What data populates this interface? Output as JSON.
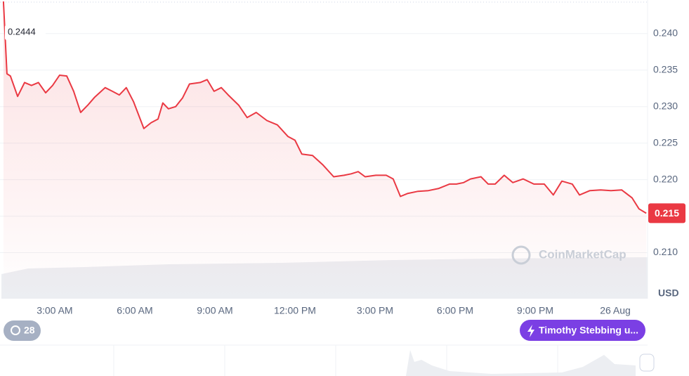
{
  "chart_data": {
    "type": "line",
    "x": [
      1.08,
      1.21,
      1.34,
      1.61,
      1.87,
      2.13,
      2.39,
      2.66,
      2.92,
      3.18,
      3.45,
      3.71,
      3.97,
      4.24,
      4.5,
      4.89,
      5.16,
      5.42,
      5.68,
      5.95,
      6.34,
      6.61,
      6.87,
      7.05,
      7.26,
      7.53,
      7.79,
      8.05,
      8.45,
      8.71,
      8.97,
      9.24,
      9.5,
      9.89,
      10.21,
      10.55,
      10.95,
      11.34,
      11.74,
      12.0,
      12.26,
      12.66,
      13.05,
      13.45,
      13.84,
      14.11,
      14.37,
      14.63,
      15.03,
      15.42,
      15.68,
      15.95,
      16.21,
      16.61,
      17.0,
      17.39,
      17.79,
      18.05,
      18.32,
      18.58,
      18.97,
      19.24,
      19.5,
      19.84,
      20.16,
      20.55,
      20.95,
      21.34,
      21.68,
      22.0,
      22.39,
      22.66,
      23.05,
      23.45,
      23.84,
      24.24,
      24.63,
      24.89,
      25.16
    ],
    "values": [
      0.2444,
      0.2345,
      0.2342,
      0.2314,
      0.2333,
      0.2329,
      0.2333,
      0.2319,
      0.2329,
      0.2343,
      0.2342,
      0.2321,
      0.2292,
      0.2302,
      0.2313,
      0.2326,
      0.2321,
      0.2316,
      0.2326,
      0.2307,
      0.227,
      0.2278,
      0.2283,
      0.2305,
      0.2297,
      0.23,
      0.2312,
      0.2331,
      0.2333,
      0.2337,
      0.2321,
      0.2326,
      0.2316,
      0.2302,
      0.2285,
      0.2292,
      0.2281,
      0.2275,
      0.2259,
      0.2254,
      0.2235,
      0.2233,
      0.222,
      0.2204,
      0.2206,
      0.2208,
      0.2211,
      0.2204,
      0.2206,
      0.2206,
      0.2201,
      0.2177,
      0.2181,
      0.2184,
      0.2185,
      0.2188,
      0.2194,
      0.2194,
      0.2196,
      0.2201,
      0.2204,
      0.2194,
      0.2194,
      0.2206,
      0.2196,
      0.2201,
      0.2194,
      0.2194,
      0.2179,
      0.2198,
      0.2194,
      0.2179,
      0.2185,
      0.2186,
      0.2185,
      0.2186,
      0.2175,
      0.216,
      0.2154
    ],
    "color": "#ea3943",
    "start_label": "0.2444",
    "last_label": "0.215",
    "xlim": [
      0.95,
      25.21
    ],
    "ylim": [
      0.2037,
      0.2446
    ],
    "xticks": [
      {
        "value": 3,
        "label": "3:00 AM"
      },
      {
        "value": 6,
        "label": "6:00 AM"
      },
      {
        "value": 9,
        "label": "9:00 AM"
      },
      {
        "value": 12,
        "label": "12:00 PM"
      },
      {
        "value": 15,
        "label": "3:00 PM"
      },
      {
        "value": 18,
        "label": "6:00 PM"
      },
      {
        "value": 21,
        "label": "9:00 PM"
      },
      {
        "value": 24,
        "label": "26 Aug"
      }
    ],
    "yticks": [
      {
        "value": 0.21,
        "label": "0.210"
      },
      0.215,
      {
        "value": 0.22,
        "label": "0.220"
      },
      0.225,
      {
        "value": 0.23,
        "label": "0.230"
      },
      0.235,
      {
        "value": 0.24,
        "label": "0.240"
      }
    ],
    "y_unit": "USD",
    "watermark": "CoinMarketCap",
    "grid": true
  },
  "history_badge": "28",
  "user_pill": "Timothy Stebbing u..."
}
